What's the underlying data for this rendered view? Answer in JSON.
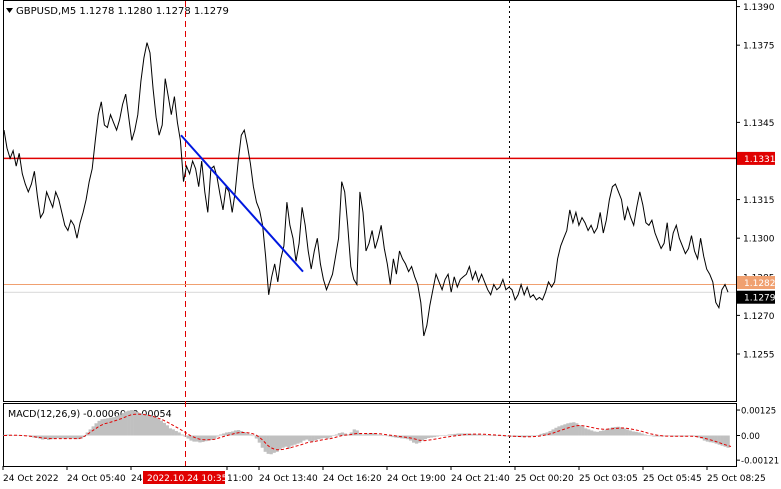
{
  "header": {
    "symbol_line": "GBPUSD,M5  1.1278 1.1280 1.1278 1.1279",
    "menu_arrow": "triangle-down-icon"
  },
  "macd_header": "MACD(12,26,9) -0.00060 -0.00054",
  "colors": {
    "background": "#ffffff",
    "price_line": "#000000",
    "resistance_line": "#e00000",
    "support_line": "#f0a070",
    "trend_line": "#0018e0",
    "vertical_marker_red": "#e00000",
    "vertical_marker_black": "#000000",
    "macd_histogram": "#c0c0c0",
    "macd_signal": "#e00000",
    "axis_text": "#000000",
    "badge_red": "#e00000",
    "badge_orange": "#f0a070",
    "badge_black": "#000000"
  },
  "price_axis": {
    "ticks": [
      "1.1390",
      "1.1375",
      "1.1345",
      "1.1330",
      "1.1315",
      "1.1300",
      "1.1285",
      "1.1270",
      "1.1255"
    ],
    "min": 1.1248,
    "max": 1.1391
  },
  "macd_axis": {
    "ticks": [
      "0.00125",
      "0.00",
      "-0.00121"
    ],
    "min": -0.0013,
    "max": 0.00135
  },
  "time_axis": {
    "labels": [
      "24 Oct 2022",
      "24 Oct 05:40",
      "24 Oct 08:20",
      "11:00",
      "24 Oct 13:40",
      "24 Oct 16:20",
      "24 Oct 19:00",
      "24 Oct 21:40",
      "25 Oct 00:20",
      "25 Oct 03:05",
      "25 Oct 05:45",
      "25 Oct 08:25"
    ],
    "highlight_label": "2022.10.24 10:35"
  },
  "price_levels": {
    "resistance": {
      "value": 1.1331,
      "label": "1.1331"
    },
    "support": {
      "value": 1.1282,
      "label": "1.1282"
    },
    "current": {
      "value": 1.1279,
      "label": "1.1279"
    }
  },
  "chart_data": {
    "type": "line",
    "title": "GBPUSD,M5",
    "series": [
      {
        "name": "GBPUSD",
        "values": [
          1.1342,
          1.1335,
          1.1331,
          1.1334,
          1.1328,
          1.1333,
          1.1325,
          1.1321,
          1.1318,
          1.1321,
          1.1326,
          1.1316,
          1.1308,
          1.131,
          1.1318,
          1.1315,
          1.1312,
          1.1318,
          1.1315,
          1.131,
          1.1305,
          1.1303,
          1.1307,
          1.1305,
          1.13,
          1.1306,
          1.131,
          1.1315,
          1.1322,
          1.1327,
          1.1338,
          1.1348,
          1.1353,
          1.1344,
          1.1343,
          1.1348,
          1.1345,
          1.1342,
          1.1346,
          1.1352,
          1.1356,
          1.1347,
          1.1338,
          1.1342,
          1.1348,
          1.1361,
          1.137,
          1.1376,
          1.1372,
          1.1358,
          1.1347,
          1.134,
          1.1344,
          1.1362,
          1.1355,
          1.1348,
          1.1355,
          1.1345,
          1.1338,
          1.1322,
          1.1328,
          1.1325,
          1.133,
          1.1327,
          1.132,
          1.133,
          1.1318,
          1.131,
          1.1327,
          1.1328,
          1.1324,
          1.1317,
          1.1311,
          1.132,
          1.1318,
          1.131,
          1.1318,
          1.133,
          1.134,
          1.1342,
          1.1336,
          1.1329,
          1.132,
          1.1314,
          1.1311,
          1.1305,
          1.1293,
          1.1278,
          1.1285,
          1.129,
          1.1283,
          1.1292,
          1.1297,
          1.1314,
          1.1305,
          1.13,
          1.1291,
          1.1298,
          1.1312,
          1.1305,
          1.1295,
          1.1288,
          1.1295,
          1.13,
          1.129,
          1.1284,
          1.128,
          1.1283,
          1.1286,
          1.1293,
          1.13,
          1.1322,
          1.1318,
          1.1305,
          1.1289,
          1.1284,
          1.1282,
          1.1318,
          1.131,
          1.1295,
          1.1298,
          1.1303,
          1.1296,
          1.13,
          1.1305,
          1.1296,
          1.129,
          1.1282,
          1.1292,
          1.1286,
          1.1295,
          1.1292,
          1.129,
          1.1287,
          1.1289,
          1.1285,
          1.1282,
          1.1275,
          1.1262,
          1.1266,
          1.1274,
          1.128,
          1.1286,
          1.1283,
          1.128,
          1.1284,
          1.1286,
          1.1279,
          1.1285,
          1.1281,
          1.1284,
          1.1285,
          1.1286,
          1.1289,
          1.1284,
          1.1287,
          1.1283,
          1.1286,
          1.1283,
          1.128,
          1.1278,
          1.1282,
          1.128,
          1.1281,
          1.1284,
          1.128,
          1.1281,
          1.128,
          1.1276,
          1.1278,
          1.1282,
          1.1278,
          1.1281,
          1.1277,
          1.1278,
          1.1276,
          1.1277,
          1.1276,
          1.1279,
          1.1283,
          1.1281,
          1.1283,
          1.1292,
          1.1297,
          1.13,
          1.1303,
          1.1311,
          1.1306,
          1.131,
          1.1305,
          1.1308,
          1.1306,
          1.1303,
          1.1305,
          1.1302,
          1.1304,
          1.131,
          1.1302,
          1.1307,
          1.1315,
          1.132,
          1.1321,
          1.1318,
          1.1315,
          1.1307,
          1.1312,
          1.1308,
          1.1305,
          1.1312,
          1.1318,
          1.1313,
          1.1306,
          1.1305,
          1.1307,
          1.1302,
          1.1299,
          1.1296,
          1.1298,
          1.1306,
          1.1295,
          1.1302,
          1.1305,
          1.13,
          1.1297,
          1.1294,
          1.1296,
          1.1301,
          1.1295,
          1.1292,
          1.13,
          1.1293,
          1.1288,
          1.1286,
          1.1283,
          1.1275,
          1.1273,
          1.128,
          1.1282,
          1.1279
        ]
      }
    ],
    "trend_line": {
      "from": 1.134,
      "to": 1.1287
    },
    "macd": {
      "name": "MACD(12,26,9)",
      "value": -0.0006,
      "signal_value": -0.00054,
      "histogram": [
        3e-05,
        5e-05,
        4e-05,
        2e-05,
        3e-05,
        2e-05,
        1e-05,
        0.0,
        -3e-05,
        -6e-05,
        -0.0001,
        -0.00012,
        -0.00015,
        -0.0002,
        -0.00017,
        -0.00022,
        -0.00018,
        -0.00015,
        -0.00013,
        -0.00013,
        -0.00015,
        -0.00015,
        -0.00013,
        -0.00015,
        -0.00017,
        -0.00018,
        -0.00015,
        -7e-05,
        0.00015,
        0.0003,
        0.00045,
        0.0006,
        0.00072,
        0.0008,
        0.00082,
        0.00085,
        0.00088,
        0.0009,
        0.00095,
        0.001,
        0.0011,
        0.00118,
        0.00122,
        0.00125,
        0.0012,
        0.00115,
        0.0011,
        0.00107,
        0.00103,
        0.001,
        0.00095,
        0.0009,
        0.00082,
        0.00073,
        0.00062,
        0.0005,
        0.00035,
        0.0003,
        0.00022,
        0.00015,
        5e-05,
        -5e-05,
        -0.00015,
        -0.00025,
        -0.0003,
        -0.0003,
        -0.00034,
        -0.00032,
        -0.00028,
        -0.00025,
        -0.00022,
        -0.00015,
        -5e-05,
        5e-05,
        0.0001,
        0.00015,
        0.00017,
        0.0002,
        0.00025,
        0.00027,
        0.00022,
        0.00016,
        0.0001,
        6e-05,
        -3e-05,
        -0.00015,
        -0.00035,
        -0.0006,
        -0.0008,
        -0.0009,
        -0.00092,
        -0.00085,
        -0.0008,
        -0.0007,
        -0.0006,
        -0.00055,
        -0.00065,
        -0.0005,
        -0.00045,
        -0.0004,
        -0.00035,
        -0.00025,
        -0.0002,
        -0.00028,
        -0.0003,
        -0.00022,
        -0.00018,
        -0.00015,
        -0.00012,
        -0.00015,
        -0.0001,
        -2e-05,
        5e-05,
        0.00012,
        0.00015,
        0.0001,
        5e-05,
        0.00015,
        0.0003,
        0.00025,
        0.0001,
        5e-05,
        8e-05,
        0.0001,
        0.00012,
        0.0001,
        5e-05,
        3e-05,
        0.0,
        -3e-05,
        -5e-05,
        -8e-05,
        -0.0001,
        -0.00012,
        -0.00014,
        -0.00015,
        -0.00018,
        -0.00025,
        -0.00035,
        -0.0004,
        -0.00035,
        -0.00025,
        -0.00018,
        -0.00012,
        -0.0001,
        -8e-05,
        -5e-05,
        -2e-05,
        0.0,
        2e-05,
        5e-05,
        6e-05,
        8e-05,
        0.0001,
        0.0001,
        0.0001,
        0.0001,
        8e-05,
        8e-05,
        6e-05,
        5e-05,
        4e-05,
        3e-05,
        2e-05,
        0.0,
        0.0,
        -1e-05,
        -2e-05,
        -3e-05,
        -4e-05,
        -5e-05,
        -6e-05,
        -6e-05,
        -7e-05,
        -8e-05,
        -8e-05,
        -7e-05,
        -5e-05,
        -4e-05,
        -2e-05,
        2e-05,
        8e-05,
        0.00012,
        0.00015,
        0.00022,
        0.0003,
        0.00038,
        0.00045,
        0.0005,
        0.00055,
        0.0006,
        0.00063,
        0.00065,
        0.0006,
        0.0005,
        0.00045,
        0.00035,
        0.0003,
        0.00025,
        0.0002,
        0.00018,
        0.00022,
        0.00025,
        0.0003,
        0.00035,
        0.0004,
        0.00042,
        0.00043,
        0.0004,
        0.00035,
        0.0003,
        0.00025,
        0.0002,
        0.00018,
        0.00015,
        0.0001,
        5e-05,
        0.0,
        -3e-05,
        -5e-05,
        -5e-05,
        -5e-05,
        -5e-05,
        -3e-05,
        -3e-05,
        -5e-05,
        -5e-05,
        -3e-05,
        -5e-05,
        -5e-05,
        -3e-05,
        -3e-05,
        -2e-05,
        -5e-05,
        -0.0001,
        -0.00015,
        -0.00025,
        -0.0003,
        -0.00033,
        -0.00035,
        -0.0004,
        -0.00045,
        -0.0005,
        -0.00055,
        -0.0006
      ],
      "signal": [
        0.0,
        0.0,
        1e-05,
        1e-05,
        1e-05,
        1e-05,
        0.0,
        -1e-05,
        -2e-05,
        -4e-05,
        -6e-05,
        -8e-05,
        -0.0001,
        -0.00012,
        -0.00013,
        -0.00014,
        -0.00015,
        -0.00015,
        -0.00015,
        -0.00015,
        -0.00015,
        -0.00015,
        -0.00015,
        -0.00015,
        -0.00015,
        -0.00015,
        -0.00012,
        -5e-05,
        5e-05,
        0.00015,
        0.00025,
        0.00035,
        0.00045,
        0.00052,
        0.00058,
        0.00062,
        0.00066,
        0.0007,
        0.00075,
        0.0008,
        0.00085,
        0.00092,
        0.00097,
        0.00102,
        0.00104,
        0.00105,
        0.00104,
        0.00103,
        0.00101,
        0.00098,
        0.00095,
        0.0009,
        0.00085,
        0.0008,
        0.00073,
        0.00066,
        0.00058,
        0.0005,
        0.00042,
        0.00034,
        0.00025,
        0.00016,
        7e-05,
        -2e-05,
        -8e-05,
        -0.00014,
        -0.00018,
        -0.0002,
        -0.00021,
        -0.00021,
        -0.0002,
        -0.00018,
        -0.00014,
        -0.0001,
        -5e-05,
        -1e-05,
        3e-05,
        7e-05,
        0.00011,
        0.00014,
        0.00015,
        0.00015,
        0.00014,
        0.00012,
        8e-05,
        2e-05,
        -8e-05,
        -0.0002,
        -0.00035,
        -0.0005,
        -0.0006,
        -0.00066,
        -0.0007,
        -0.0007,
        -0.00068,
        -0.00065,
        -0.00062,
        -0.00058,
        -0.00054,
        -0.0005,
        -0.00046,
        -0.00041,
        -0.00036,
        -0.00033,
        -0.00031,
        -0.00028,
        -0.00025,
        -0.00022,
        -0.00019,
        -0.00017,
        -0.00015,
        -0.00012,
        -8e-05,
        -4e-05,
        0.0,
        2e-05,
        3e-05,
        5e-05,
        8e-05,
        0.0001,
        0.0001,
        0.0001,
        0.0001,
        0.0001,
        0.0001,
        0.0001,
        9e-05,
        8e-05,
        6e-05,
        4e-05,
        2e-05,
        0.0,
        -2e-05,
        -4e-05,
        -6e-05,
        -8e-05,
        -0.0001,
        -0.00012,
        -0.00015,
        -0.00019,
        -0.00023,
        -0.00025,
        -0.00025,
        -0.00023,
        -0.00021,
        -0.00018,
        -0.00016,
        -0.00013,
        -0.0001,
        -8e-05,
        -6e-05,
        -4e-05,
        -2e-05,
        0.0,
        2e-05,
        4e-05,
        5e-05,
        6e-05,
        7e-05,
        7e-05,
        7e-05,
        7e-05,
        6e-05,
        5e-05,
        4e-05,
        3e-05,
        2e-05,
        1e-05,
        0.0,
        -1e-05,
        -2e-05,
        -3e-05,
        -4e-05,
        -5e-05,
        -5e-05,
        -6e-05,
        -6e-05,
        -6e-05,
        -6e-05,
        -5e-05,
        -4e-05,
        -2e-05,
        1e-05,
        4e-05,
        8e-05,
        0.00012,
        0.00017,
        0.00022,
        0.00027,
        0.00032,
        0.00037,
        0.00041,
        0.00045,
        0.00048,
        0.00049,
        0.00048,
        0.00046,
        0.00043,
        0.0004,
        0.00037,
        0.00034,
        0.00032,
        0.00031,
        0.00031,
        0.00032,
        0.00033,
        0.00035,
        0.00036,
        0.00037,
        0.00037,
        0.00035,
        0.00033,
        0.0003,
        0.00027,
        0.00024,
        0.0002,
        0.00016,
        0.00012,
        8e-05,
        5e-05,
        2e-05,
        0.0,
        -2e-05,
        -3e-05,
        -3e-05,
        -4e-05,
        -4e-05,
        -4e-05,
        -4e-05,
        -4e-05,
        -4e-05,
        -4e-05,
        -4e-05,
        -5e-05,
        -7e-05,
        -0.0001,
        -0.00013,
        -0.00017,
        -0.00021,
        -0.00025,
        -0.0003,
        -0.00035,
        -0.0004,
        -0.00045,
        -0.0005,
        -0.00054
      ]
    }
  }
}
